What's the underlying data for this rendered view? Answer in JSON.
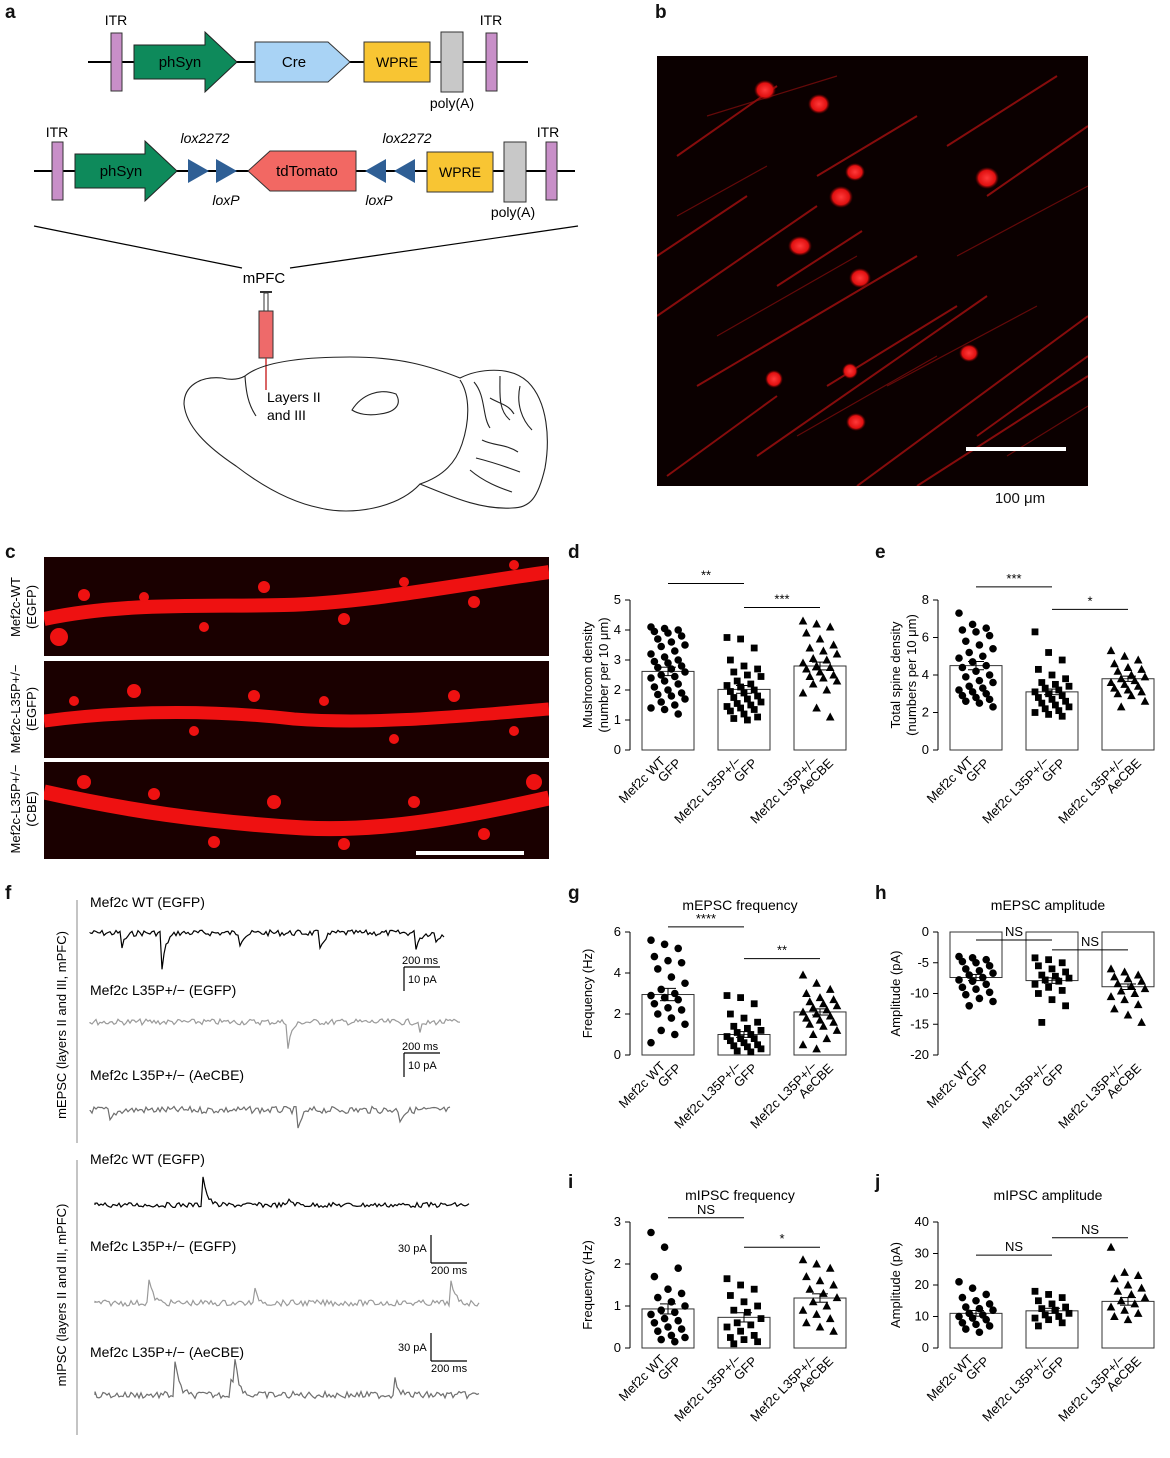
{
  "panels": {
    "a": "a",
    "b": "b",
    "c": "c",
    "d": "d",
    "e": "e",
    "f": "f",
    "g": "g",
    "h": "h",
    "i": "i",
    "j": "j"
  },
  "construct1": {
    "itr_left": "ITR",
    "promoter": "phSyn",
    "gene": "Cre",
    "wpre": "WPRE",
    "polyA": "poly(A)",
    "itr_right": "ITR"
  },
  "construct2": {
    "itr_left": "ITR",
    "promoter": "phSyn",
    "lox2272_left": "lox2272",
    "lox2272_right": "lox2272",
    "loxP_left": "loxP",
    "loxP_right": "loxP",
    "gene": "tdTomato",
    "wpre": "WPRE",
    "polyA": "poly(A)",
    "itr_right": "ITR"
  },
  "injection": {
    "region": "mPFC",
    "layers_line1": "Layers II",
    "layers_line2": "and III"
  },
  "microscopy": {
    "scale_bar": "100 μm"
  },
  "dendrites": {
    "row1_line1": "Mef2c-WT",
    "row1_line2": "(EGFP)",
    "row2_line1": "Mef2c-L35P+/−",
    "row2_line2": "(EGFP)",
    "row3_line1": "Mef2c-L35P+/−",
    "row3_line2": "(CBE)"
  },
  "traces": {
    "mepsc_axis_label": "mEPSC (layers II and III, mPFC)",
    "mipsc_axis_label": "mIPSC (layers II and III, mPFC)",
    "wt": "Mef2c WT (EGFP)",
    "l35p_egfp": "Mef2c L35P+/− (EGFP)",
    "l35p_aecbe": "Mef2c L35P+/− (AeCBE)",
    "scale_ms": "200 ms",
    "scale_pa_mepsc": "10 pA",
    "scale_pa_mipsc": "30 pA",
    "colors": {
      "wt": "#000000",
      "l35p_egfp": "#9a9a9a",
      "l35p_aecbe": "#6e6e6e"
    }
  },
  "xgroups": [
    {
      "line1": "Mef2c WT",
      "line2": "GFP"
    },
    {
      "line1": "Mef2c L35P+/−",
      "line2": "GFP"
    },
    {
      "line1": "Mef2c L35P+/−",
      "line2": "AeCBE"
    }
  ],
  "chart_data": [
    {
      "panel": "d",
      "type": "bar",
      "title": "",
      "ylabel_line1": "Mushroom density",
      "ylabel_line2": "(number per 10 μm)",
      "ylim": [
        0,
        5
      ],
      "yticks": [
        0,
        1,
        2,
        3,
        4,
        5
      ],
      "means": [
        2.62,
        2.02,
        2.8
      ],
      "sem": [
        0.14,
        0.13,
        0.13
      ],
      "markers": [
        "circle",
        "square",
        "triangle"
      ],
      "points": [
        [
          4.1,
          4.05,
          4.0,
          3.95,
          3.9,
          3.8,
          3.7,
          3.6,
          3.5,
          3.45,
          3.3,
          3.2,
          3.1,
          3.0,
          2.95,
          2.9,
          2.8,
          2.75,
          2.7,
          2.6,
          2.5,
          2.45,
          2.4,
          2.3,
          2.2,
          2.1,
          2.0,
          1.9,
          1.85,
          1.8,
          1.7,
          1.6,
          1.5,
          1.4,
          1.35,
          1.2
        ],
        [
          3.75,
          3.7,
          3.4,
          3.0,
          2.8,
          2.7,
          2.6,
          2.5,
          2.45,
          2.3,
          2.2,
          2.15,
          2.1,
          2.0,
          1.95,
          1.9,
          1.8,
          1.75,
          1.7,
          1.6,
          1.55,
          1.5,
          1.45,
          1.4,
          1.35,
          1.3,
          1.2,
          1.1,
          1.05,
          1.0
        ],
        [
          4.3,
          4.2,
          4.1,
          3.9,
          3.7,
          3.5,
          3.4,
          3.3,
          3.2,
          3.05,
          3.0,
          2.9,
          2.8,
          2.75,
          2.7,
          2.6,
          2.5,
          2.45,
          2.4,
          2.3,
          2.2,
          2.0,
          1.9,
          1.4,
          1.1
        ]
      ],
      "brackets": [
        {
          "from": 0,
          "to": 1,
          "y": 5.55,
          "label": "**"
        },
        {
          "from": 1,
          "to": 2,
          "y": 4.75,
          "label": "***"
        }
      ]
    },
    {
      "panel": "e",
      "type": "bar",
      "title": "",
      "ylabel_line1": "Total spine density",
      "ylabel_line2": "(numbers per 10 μm)",
      "ylim": [
        0,
        8
      ],
      "yticks": [
        0,
        2,
        4,
        6,
        8
      ],
      "means": [
        4.5,
        3.1,
        3.8
      ],
      "sem": [
        0.22,
        0.15,
        0.14
      ],
      "markers": [
        "circle",
        "square",
        "triangle"
      ],
      "points": [
        [
          7.3,
          6.7,
          6.5,
          6.4,
          6.3,
          6.1,
          5.8,
          5.6,
          5.4,
          5.2,
          5.0,
          4.9,
          4.7,
          4.5,
          4.4,
          4.2,
          4.0,
          3.9,
          3.7,
          3.6,
          3.4,
          3.3,
          3.2,
          3.1,
          3.0,
          2.9,
          2.8,
          2.7,
          2.6,
          2.5,
          2.3
        ],
        [
          6.3,
          5.2,
          4.8,
          4.3,
          4.0,
          3.8,
          3.6,
          3.5,
          3.4,
          3.3,
          3.2,
          3.1,
          3.0,
          2.9,
          2.8,
          2.7,
          2.6,
          2.5,
          2.4,
          2.3,
          2.2,
          2.1,
          2.0,
          1.9,
          1.8
        ],
        [
          5.3,
          5.0,
          4.8,
          4.6,
          4.4,
          4.3,
          4.2,
          4.0,
          3.9,
          3.8,
          3.7,
          3.6,
          3.5,
          3.4,
          3.3,
          3.2,
          3.1,
          3.0,
          2.9,
          2.6,
          2.3
        ]
      ],
      "brackets": [
        {
          "from": 0,
          "to": 1,
          "y": 8.7,
          "label": "***"
        },
        {
          "from": 1,
          "to": 2,
          "y": 7.5,
          "label": "*"
        }
      ]
    },
    {
      "panel": "g",
      "type": "bar",
      "title": "mEPSC frequency",
      "ylabel_line1": "Frequency (Hz)",
      "ylabel_line2": "",
      "ylim": [
        0,
        6
      ],
      "yticks": [
        0,
        2,
        4,
        6
      ],
      "means": [
        2.95,
        1.0,
        2.1
      ],
      "sem": [
        0.3,
        0.14,
        0.15
      ],
      "markers": [
        "circle",
        "square",
        "triangle"
      ],
      "points": [
        [
          5.6,
          5.4,
          5.2,
          4.8,
          4.6,
          4.5,
          4.2,
          3.8,
          3.5,
          3.2,
          3.0,
          2.9,
          2.8,
          2.7,
          2.5,
          2.3,
          2.2,
          2.0,
          1.8,
          1.5,
          1.2,
          1.0,
          0.6
        ],
        [
          2.9,
          2.8,
          2.5,
          2.0,
          1.8,
          1.6,
          1.4,
          1.3,
          1.2,
          1.1,
          1.0,
          0.9,
          0.8,
          0.8,
          0.7,
          0.6,
          0.5,
          0.45,
          0.4,
          0.3,
          0.2,
          0.15
        ],
        [
          3.9,
          3.5,
          3.2,
          3.0,
          2.8,
          2.7,
          2.6,
          2.5,
          2.4,
          2.3,
          2.2,
          2.1,
          2.0,
          1.9,
          1.8,
          1.7,
          1.6,
          1.5,
          1.4,
          1.2,
          1.0,
          0.8,
          0.5,
          0.3
        ]
      ],
      "brackets": [
        {
          "from": 0,
          "to": 1,
          "y": 6.25,
          "label": "****"
        },
        {
          "from": 1,
          "to": 2,
          "y": 4.7,
          "label": "**"
        }
      ]
    },
    {
      "panel": "h",
      "type": "bar",
      "title": "mEPSC amplitude",
      "ylabel_line1": "Amplitude (pA)",
      "ylabel_line2": "",
      "ylim": [
        -20,
        0
      ],
      "yticks": [
        0,
        -5,
        -10,
        -15,
        -20
      ],
      "inverted_bars": true,
      "means": [
        -7.4,
        -7.9,
        -8.9
      ],
      "sem": [
        0.5,
        0.45,
        0.45
      ],
      "markers": [
        "circle",
        "square",
        "triangle"
      ],
      "points": [
        [
          -4.0,
          -4.2,
          -4.5,
          -4.8,
          -5.0,
          -5.5,
          -6.0,
          -6.3,
          -6.7,
          -7.0,
          -7.4,
          -7.8,
          -8.0,
          -8.5,
          -9.0,
          -9.3,
          -9.8,
          -10.2,
          -10.8,
          -11.3,
          -12.0
        ],
        [
          -4.2,
          -4.5,
          -5.0,
          -5.5,
          -6.0,
          -6.5,
          -7.0,
          -7.2,
          -7.5,
          -7.8,
          -8.0,
          -8.5,
          -9.0,
          -9.5,
          -10.0,
          -11.0,
          -12.0,
          -14.7
        ],
        [
          -6.0,
          -6.5,
          -7.0,
          -7.3,
          -7.6,
          -8.0,
          -8.4,
          -8.8,
          -9.2,
          -9.6,
          -10.0,
          -10.5,
          -11.0,
          -11.8,
          -12.5,
          -13.5,
          -14.7
        ]
      ],
      "brackets": [
        {
          "from": 0,
          "to": 1,
          "y": -1.3,
          "label": "NS"
        },
        {
          "from": 1,
          "to": 2,
          "y": -2.9,
          "label": "NS"
        }
      ]
    },
    {
      "panel": "i",
      "type": "bar",
      "title": "mIPSC frequency",
      "ylabel_line1": "Frequency (Hz)",
      "ylabel_line2": "",
      "ylim": [
        0,
        3
      ],
      "yticks": [
        0,
        1,
        2,
        3
      ],
      "means": [
        0.93,
        0.73,
        1.19
      ],
      "sem": [
        0.12,
        0.11,
        0.1
      ],
      "markers": [
        "circle",
        "square",
        "triangle"
      ],
      "points": [
        [
          2.75,
          2.4,
          1.9,
          1.7,
          1.4,
          1.3,
          1.2,
          1.1,
          1.0,
          0.9,
          0.85,
          0.8,
          0.7,
          0.65,
          0.6,
          0.5,
          0.45,
          0.4,
          0.3,
          0.25,
          0.2,
          0.15
        ],
        [
          1.65,
          1.5,
          1.4,
          1.25,
          1.1,
          1.0,
          0.9,
          0.85,
          0.7,
          0.6,
          0.55,
          0.5,
          0.4,
          0.3,
          0.25,
          0.2,
          0.15,
          0.1
        ],
        [
          2.1,
          2.0,
          1.9,
          1.7,
          1.6,
          1.5,
          1.4,
          1.3,
          1.2,
          1.1,
          1.0,
          0.9,
          0.8,
          0.7,
          0.6,
          0.5,
          0.4
        ]
      ],
      "brackets": [
        {
          "from": 0,
          "to": 1,
          "y": 3.1,
          "label": "NS"
        },
        {
          "from": 1,
          "to": 2,
          "y": 2.4,
          "label": "*"
        }
      ]
    },
    {
      "panel": "j",
      "type": "bar",
      "title": "mIPSC amplitude",
      "ylabel_line1": "Amplitude (pA)",
      "ylabel_line2": "",
      "ylim": [
        0,
        40
      ],
      "yticks": [
        0,
        10,
        20,
        30,
        40
      ],
      "means": [
        11,
        11.8,
        14.8
      ],
      "sem": [
        0.9,
        0.8,
        1.2
      ],
      "markers": [
        "circle",
        "square",
        "triangle"
      ],
      "points": [
        [
          21,
          19,
          17,
          16,
          15,
          14,
          13,
          12.5,
          12,
          11,
          10.5,
          10,
          9.5,
          9,
          8,
          7.5,
          7,
          6,
          5
        ],
        [
          18,
          17,
          16,
          15,
          14,
          13,
          12.5,
          12,
          11,
          10.5,
          10,
          9.5,
          9,
          8,
          7
        ],
        [
          32,
          24,
          23,
          22,
          20,
          19,
          18,
          17,
          16,
          15,
          14,
          13,
          12,
          11,
          10,
          9
        ]
      ],
      "brackets": [
        {
          "from": 0,
          "to": 1,
          "y": 29.5,
          "label": "NS"
        },
        {
          "from": 1,
          "to": 2,
          "y": 35,
          "label": "NS"
        }
      ]
    }
  ]
}
